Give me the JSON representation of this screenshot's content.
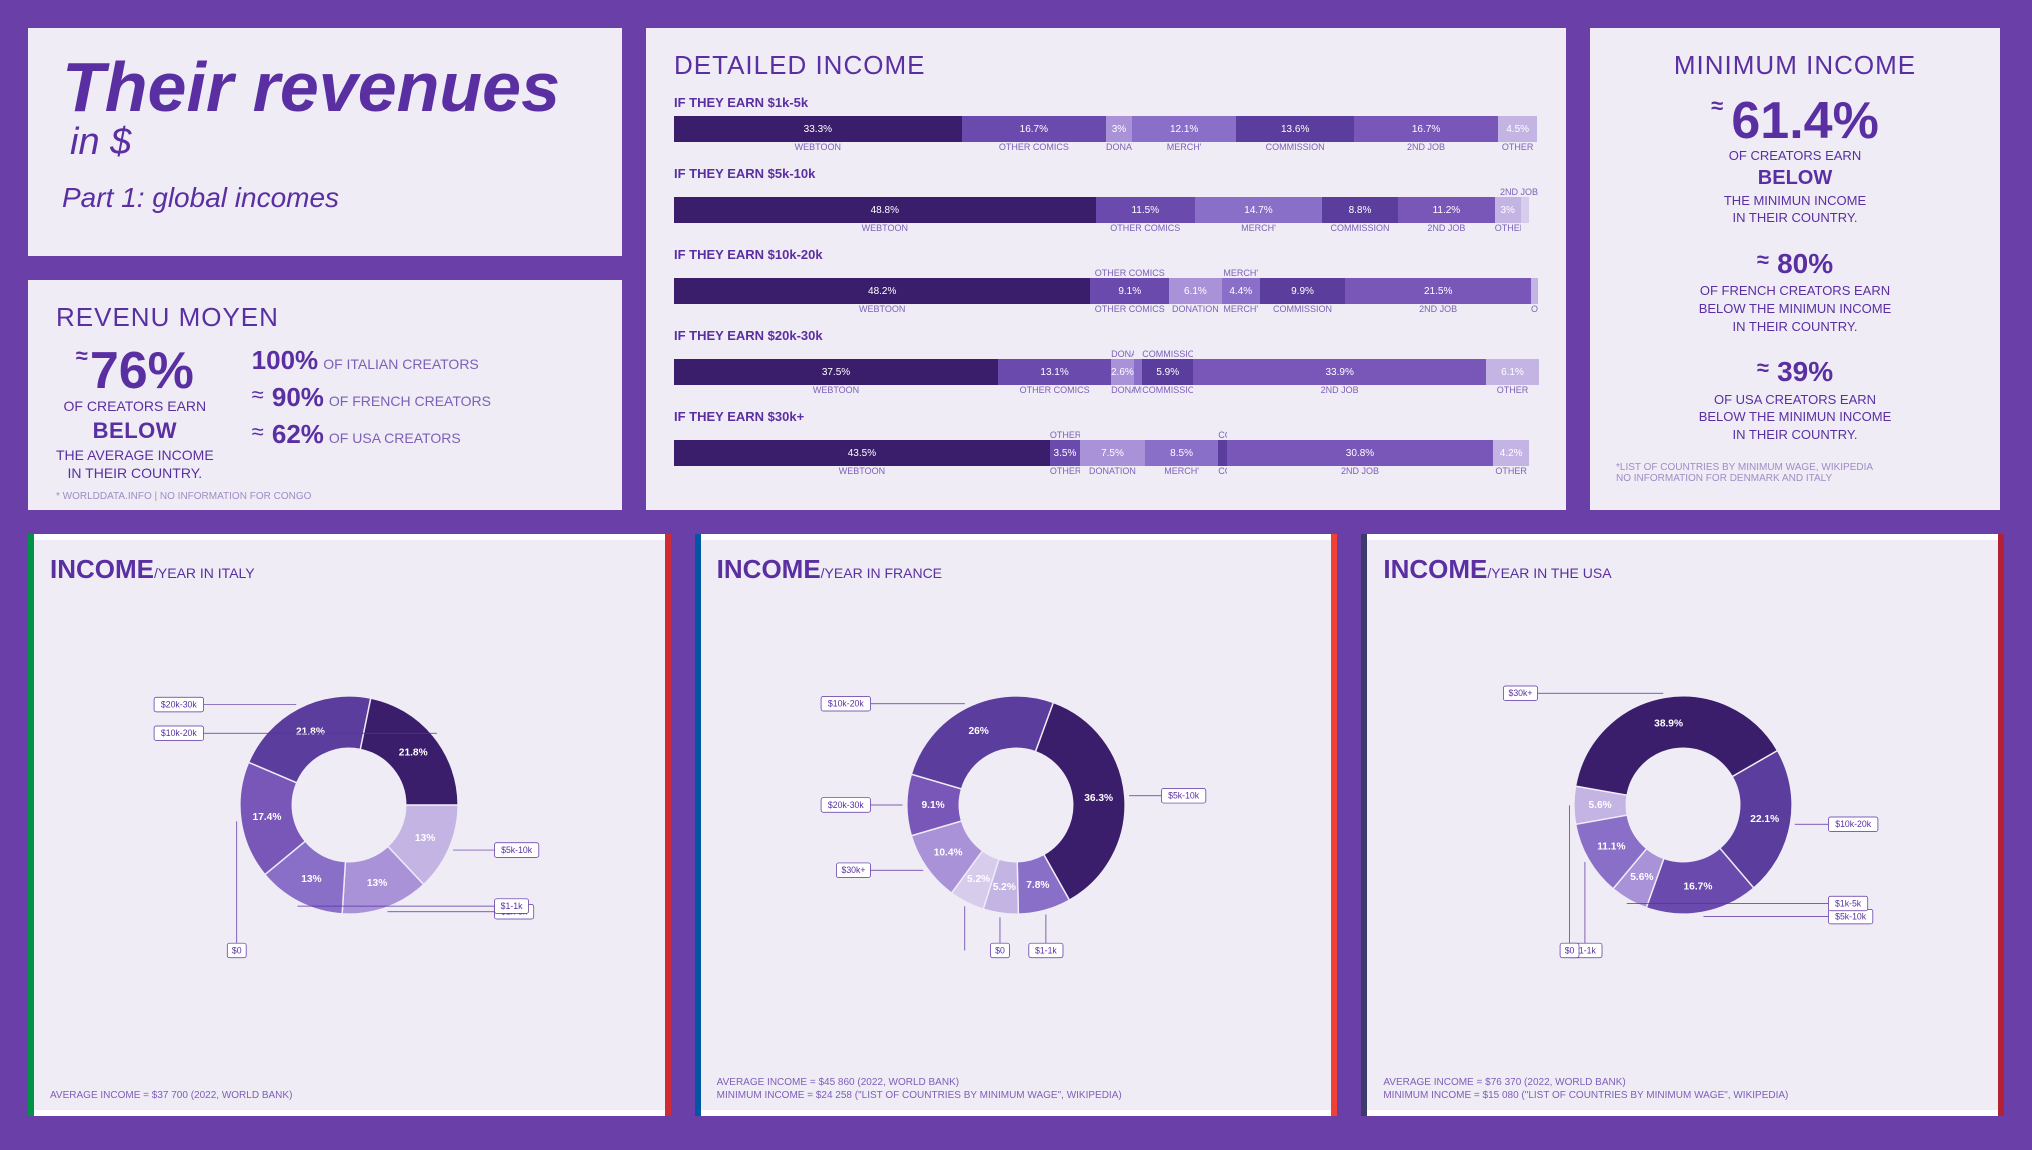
{
  "title": {
    "main": "Their revenues",
    "unit": "in $",
    "part": "Part 1: global incomes"
  },
  "revenu_moyen": {
    "title": "REVENU MOYEN",
    "main_pct": "76%",
    "lines": [
      "OF CREATORS EARN",
      "BELOW",
      "THE AVERAGE INCOME",
      "IN THEIR COUNTRY."
    ],
    "side": [
      {
        "pct": "100%",
        "text": "OF ITALIAN CREATORS"
      },
      {
        "pct": "90%",
        "text": "OF FRENCH CREATORS",
        "approx": true
      },
      {
        "pct": "62%",
        "text": "OF USA CREATORS",
        "approx": true
      }
    ],
    "footnote": "* WORLDDATA.INFO | NO INFORMATION FOR CONGO"
  },
  "detailed": {
    "title": "DETAILED INCOME",
    "segment_labels": [
      "WEBTOON",
      "OTHER COMICS",
      "DONATION",
      "MERCH'",
      "COMMISSION",
      "2ND JOB",
      "OTHER"
    ],
    "colors": [
      "#3a1e6b",
      "#6a4aad",
      "#a992d8",
      "#8a6fc8",
      "#5a3d9c",
      "#7857b8",
      "#c3b4e4"
    ],
    "rows": [
      {
        "title": "IF THEY EARN $1k-5k",
        "values": [
          33.3,
          16.7,
          3,
          12.1,
          13.6,
          16.7,
          4.5
        ]
      },
      {
        "title": "IF THEY EARN $5k-10k",
        "values": [
          48.8,
          11.5,
          0,
          14.7,
          8.8,
          11.2,
          3
        ],
        "extra_small": [
          1
        ],
        "right_note": "2ND JOB"
      },
      {
        "title": "IF THEY EARN $10k-20k",
        "values": [
          48.2,
          9.1,
          6.1,
          4.4,
          9.9,
          21.5,
          0.8
        ],
        "top_labels": [
          "",
          "OTHER COMICS",
          "",
          "MERCH'",
          "",
          "",
          ""
        ]
      },
      {
        "title": "IF THEY EARN $20k-30k",
        "values": [
          37.5,
          13.1,
          2.6,
          1,
          5.9,
          33.9,
          6.1
        ],
        "top_labels": [
          "",
          "",
          "DONATION",
          "",
          "COMMISSION",
          "",
          ""
        ]
      },
      {
        "title": "IF THEY EARN $30k+",
        "values": [
          43.5,
          3.5,
          7.5,
          8.5,
          1,
          30.8,
          4.2
        ],
        "top_labels": [
          "",
          "OTHER COMICS",
          "",
          "",
          "COMMISSION",
          "",
          ""
        ]
      }
    ]
  },
  "minimum": {
    "title": "MINIMUM INCOME",
    "blocks": [
      {
        "pct": "61.4%",
        "big": true,
        "lines": [
          "OF CREATORS EARN",
          "BELOW",
          "THE MINIMUN INCOME",
          "IN THEIR COUNTRY."
        ]
      },
      {
        "pct": "80%",
        "lines": [
          "OF FRENCH CREATORS EARN",
          "BELOW THE MINIMUN INCOME",
          "IN THEIR COUNTRY."
        ]
      },
      {
        "pct": "39%",
        "lines": [
          "OF USA CREATORS EARN",
          "BELOW THE MINIMUN INCOME",
          "IN THEIR COUNTRY."
        ]
      }
    ],
    "footnote": "*LIST OF COUNTRIES BY MINIMUM WAGE, WIKIPEDIA\nNO INFORMATION FOR DENMARK AND ITALY"
  },
  "donut_common": {
    "inner_radius": 78,
    "outer_radius": 150
  },
  "donuts": [
    {
      "id": "italy",
      "title": "INCOME",
      "subtitle": "/YEAR IN ITALY",
      "flag": [
        "#009246",
        "#ffffff",
        "#ce2b37"
      ],
      "start_angle": 90,
      "slices": [
        {
          "label": "$5k-10k",
          "pct": 13,
          "color": "#c3b4e4",
          "out": "right"
        },
        {
          "label": "$1k-5k",
          "pct": 13,
          "color": "#a992d8",
          "out": "right"
        },
        {
          "label": "$1-1k",
          "pct": 13,
          "color": "#8a6fc8",
          "out": "right"
        },
        {
          "label": "$0",
          "pct": 17.4,
          "color": "#7857b8",
          "out": "bottom"
        },
        {
          "label": "$20k-30k",
          "pct": 21.8,
          "color": "#5a3d9c",
          "out": "left"
        },
        {
          "label": "$10k-20k",
          "pct": 21.8,
          "color": "#3a1e6b",
          "out": "left"
        }
      ],
      "footer": "AVERAGE INCOME = $37 700 (2022, WORLD BANK)"
    },
    {
      "id": "france",
      "title": "INCOME",
      "subtitle": "/YEAR IN FRANCE",
      "flag": [
        "#0055a4",
        "#ffffff",
        "#ef4135"
      ],
      "start_angle": 20,
      "slices": [
        {
          "label": "$5k-10k",
          "pct": 36.3,
          "color": "#3a1e6b",
          "out": "right"
        },
        {
          "label": "$1-1k",
          "pct": 7.8,
          "color": "#8a6fc8",
          "out": "bottom"
        },
        {
          "label": "$0",
          "pct": 5.2,
          "color": "#c3b4e4",
          "out": "bottom"
        },
        {
          "pct": 5.2,
          "color": "#d7ccec",
          "out": "bottom",
          "label": ""
        },
        {
          "label": "$30k+",
          "pct": 10.4,
          "color": "#a992d8",
          "out": "left"
        },
        {
          "label": "$20k-30k",
          "pct": 9.1,
          "color": "#7857b8",
          "out": "left"
        },
        {
          "label": "$10k-20k",
          "pct": 26,
          "color": "#5a3d9c",
          "out": "left"
        }
      ],
      "footer": "AVERAGE INCOME = $45 860 (2022, WORLD BANK)\nMINIMUM INCOME = $24 258 (\"LIST OF COUNTRIES BY MINIMUM WAGE\", WIKIPEDIA)"
    },
    {
      "id": "usa",
      "title": "INCOME",
      "subtitle": "/YEAR IN THE USA",
      "flag": [
        "#3c3b6e",
        "#ffffff",
        "#b22234"
      ],
      "start_angle": 60,
      "slices": [
        {
          "label": "$10k-20k",
          "pct": 22.1,
          "color": "#5a3d9c",
          "out": "right"
        },
        {
          "label": "$5k-10k",
          "pct": 16.7,
          "color": "#6a4aad",
          "out": "right"
        },
        {
          "label": "$1k-5k",
          "pct": 5.6,
          "color": "#a992d8",
          "out": "right"
        },
        {
          "label": "$1-1k",
          "pct": 11.1,
          "color": "#8a6fc8",
          "out": "bottom"
        },
        {
          "label": "$0",
          "pct": 5.6,
          "color": "#c3b4e4",
          "out": "bottom"
        },
        {
          "label": "$30k+",
          "pct": 38.9,
          "color": "#3a1e6b",
          "out": "left"
        }
      ],
      "footer": "AVERAGE INCOME = $76 370 (2022, WORLD BANK)\nMINIMUM INCOME = $15 080 (\"LIST OF COUNTRIES BY MINIMUM WAGE\", WIKIPEDIA)"
    }
  ]
}
